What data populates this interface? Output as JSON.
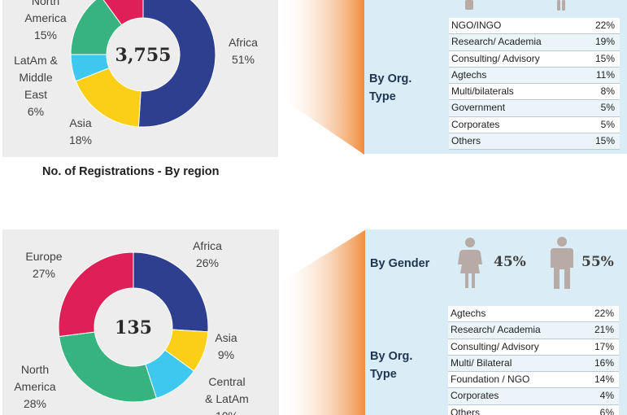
{
  "top": {
    "center_total": "3,755",
    "caption": "No. of Registrations - By region",
    "region_labels": {
      "north_america": [
        "North",
        "America",
        "15%"
      ],
      "latam": [
        "LatAm &",
        "Middle",
        "East",
        "6%"
      ],
      "asia": [
        "Asia",
        "18%"
      ],
      "africa": [
        "Africa",
        "51%"
      ]
    },
    "org_label": [
      "By Org.",
      "Type"
    ],
    "org_rows": [
      {
        "name": "NGO/INGO",
        "pct": "22%"
      },
      {
        "name": "Research/ Academia",
        "pct": "19%"
      },
      {
        "name": "Consulting/ Advisory",
        "pct": "15%"
      },
      {
        "name": "Agtechs",
        "pct": "11%"
      },
      {
        "name": "Multi/bilaterals",
        "pct": "8%"
      },
      {
        "name": "Government",
        "pct": "5%"
      },
      {
        "name": "Corporates",
        "pct": "5%"
      },
      {
        "name": "Others",
        "pct": "15%"
      }
    ]
  },
  "bottom": {
    "center_total": "135",
    "region_labels": {
      "europe": [
        "Europe",
        "27%"
      ],
      "africa": [
        "Africa",
        "26%"
      ],
      "asia": [
        "Asia",
        "9%"
      ],
      "central_latam": [
        "Central",
        "& LatAm",
        "10%"
      ],
      "north_america": [
        "North",
        "America",
        "28%"
      ]
    },
    "gender_label": "By Gender",
    "gender": {
      "female_pct": "45%",
      "male_pct": "55%"
    },
    "org_label": [
      "By Org.",
      "Type"
    ],
    "org_rows": [
      {
        "name": "Agtechs",
        "pct": "22%"
      },
      {
        "name": "Research/ Academia",
        "pct": "21%"
      },
      {
        "name": "Consulting/ Advisory",
        "pct": "17%"
      },
      {
        "name": "Multi/ Bilateral",
        "pct": "16%"
      },
      {
        "name": "Foundation / NGO",
        "pct": "14%"
      },
      {
        "name": "Corporates",
        "pct": "4%"
      },
      {
        "name": "Others",
        "pct": "6%"
      }
    ]
  },
  "colors": {
    "africa": "#2e3f8f",
    "asia": "#fbcf17",
    "latam": "#3ec8ef",
    "north_america": "#36b37e",
    "europe": "#df2058",
    "panel_gray": "#ededed",
    "panel_blue": "#daedf6",
    "funnel": "#f08c3c",
    "person": "#b8aaa4"
  },
  "chart_data": [
    {
      "type": "pie",
      "center_value": "3,755",
      "categories": [
        "Africa",
        "Asia",
        "LatAm & Middle East",
        "North America",
        "Europe"
      ],
      "values": [
        51,
        18,
        6,
        15,
        10
      ],
      "colors": [
        "#2e3f8f",
        "#fbcf17",
        "#3ec8ef",
        "#36b37e",
        "#df2058"
      ],
      "title": "No. of Registrations - By region"
    },
    {
      "type": "pie",
      "center_value": "135",
      "categories": [
        "Africa",
        "Asia",
        "Central & LatAm",
        "North America",
        "Europe"
      ],
      "values": [
        26,
        9,
        10,
        28,
        27
      ],
      "colors": [
        "#2e3f8f",
        "#fbcf17",
        "#3ec8ef",
        "#36b37e",
        "#df2058"
      ]
    }
  ]
}
